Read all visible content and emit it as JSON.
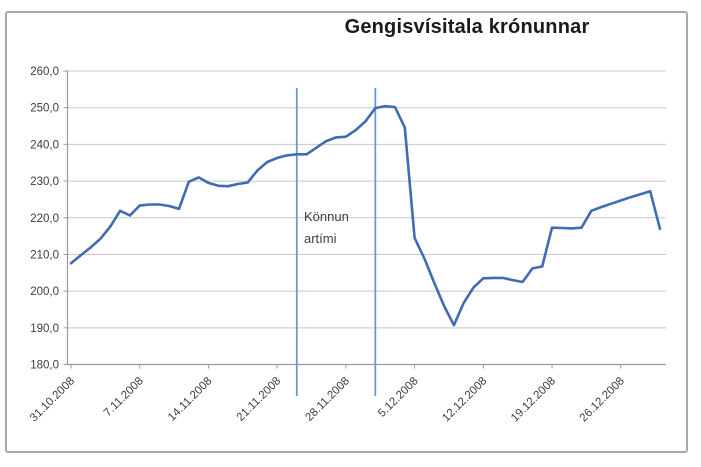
{
  "title": "Gengisvísitala krónunnar",
  "chart_data": {
    "type": "line",
    "title": "Gengisvísitala krónunnar",
    "x": [
      "31.10.2008",
      "1.11.2008",
      "2.11.2008",
      "3.11.2008",
      "4.11.2008",
      "5.11.2008",
      "6.11.2008",
      "7.11.2008",
      "8.11.2008",
      "9.11.2008",
      "10.11.2008",
      "11.11.2008",
      "12.11.2008",
      "13.11.2008",
      "14.11.2008",
      "15.11.2008",
      "16.11.2008",
      "17.11.2008",
      "18.11.2008",
      "19.11.2008",
      "20.11.2008",
      "21.11.2008",
      "22.11.2008",
      "23.11.2008",
      "24.11.2008",
      "25.11.2008",
      "26.11.2008",
      "27.11.2008",
      "28.11.2008",
      "29.11.2008",
      "30.11.2008",
      "1.12.2008",
      "2.12.2008",
      "3.12.2008",
      "4.12.2008",
      "5.12.2008",
      "6.12.2008",
      "7.12.2008",
      "8.12.2008",
      "9.12.2008",
      "10.12.2008",
      "11.12.2008",
      "12.12.2008",
      "13.12.2008",
      "14.12.2008",
      "15.12.2008",
      "16.12.2008",
      "17.12.2008",
      "18.12.2008",
      "19.12.2008",
      "20.12.2008",
      "21.12.2008",
      "22.12.2008",
      "23.12.2008",
      "24.12.2008",
      "25.12.2008",
      "26.12.2008",
      "27.12.2008",
      "28.12.2008",
      "29.12.2008",
      "30.12.2008"
    ],
    "values": [
      207.6,
      209.8,
      211.9,
      214.3,
      217.6,
      221.9,
      220.6,
      223.3,
      223.6,
      223.6,
      223.2,
      222.4,
      229.8,
      231.0,
      229.5,
      228.7,
      228.6,
      229.2,
      229.6,
      232.9,
      235.2,
      236.3,
      237.0,
      237.3,
      237.3,
      239.1,
      240.9,
      241.9,
      242.1,
      243.9,
      246.3,
      249.9,
      250.4,
      250.2,
      244.6,
      214.5,
      208.9,
      202.3,
      196.0,
      190.7,
      196.8,
      201.0,
      203.5,
      203.6,
      203.6,
      203.0,
      202.5,
      206.2,
      206.7,
      217.3,
      217.2,
      217.1,
      217.3,
      221.9,
      222.9,
      223.8,
      224.7,
      225.6,
      226.4,
      227.2,
      217.0
    ],
    "x_tick_labels": [
      "31.10.2008",
      "7.11.2008",
      "14.11.2008",
      "21.11.2008",
      "28.11.2008",
      "5.12.2008",
      "12.12.2008",
      "19.12.2008",
      "26.12.2008"
    ],
    "x_tick_every": 7,
    "y_tick_labels": [
      "260,0",
      "250,0",
      "240,0",
      "230,0",
      "220,0",
      "210,0",
      "200,0",
      "190,0",
      "180,0"
    ],
    "y_tick_values": [
      260,
      250,
      240,
      230,
      220,
      210,
      200,
      190,
      180
    ],
    "ylim": [
      180,
      260
    ],
    "grid": true,
    "legend": false,
    "annotation": {
      "text_lines": [
        "Könnun",
        "artími"
      ],
      "vline_dates": [
        "23.11.2008",
        "1.12.2008"
      ]
    },
    "colors": {
      "series": "#3f6cb3",
      "annotation_line": "#6f97cf",
      "gridline": "#c8c8c8",
      "axis": "#9a9a9a",
      "frame_border": "#a8a8a8",
      "tick_text": "#3d3d3d",
      "title_text": "#1a1a1a"
    }
  }
}
